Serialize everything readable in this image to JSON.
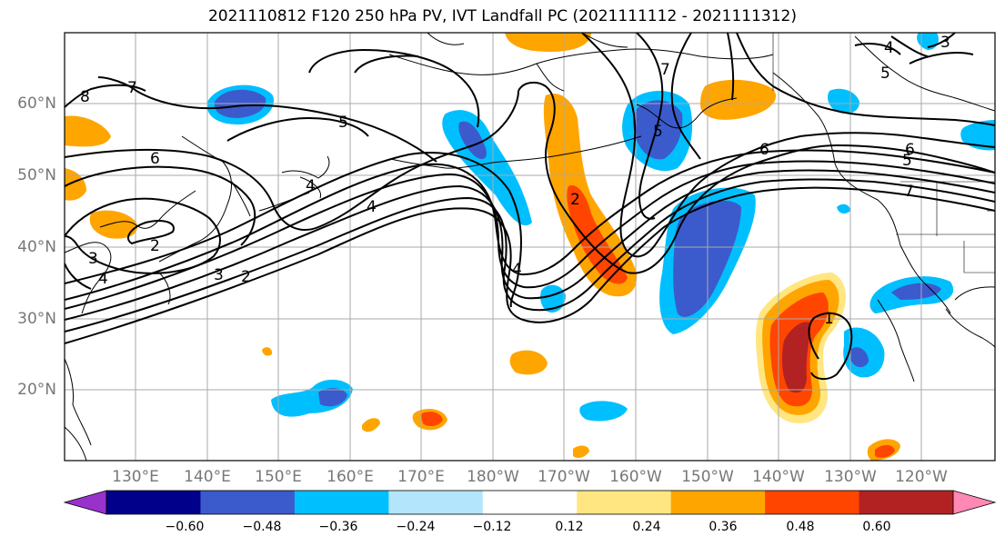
{
  "title": "2021110812 F120 250 hPa PV, IVT Landfall PC (2021111112 - 2021111312)",
  "lat_labels": [
    "60°N",
    "50°N",
    "40°N",
    "30°N",
    "20°N"
  ],
  "lon_labels": [
    "130°E",
    "140°E",
    "150°E",
    "160°E",
    "170°E",
    "180°W",
    "170°W",
    "160°W",
    "150°W",
    "140°W",
    "130°W",
    "120°W"
  ],
  "contour_labels": [
    "8",
    "7",
    "6",
    "5",
    "4",
    "3",
    "2",
    "1"
  ],
  "colorbar": {
    "ticks": [
      "−0.60",
      "−0.48",
      "−0.36",
      "−0.24",
      "−0.12",
      "0.12",
      "0.24",
      "0.36",
      "0.48",
      "0.60"
    ],
    "colors": [
      "#9932cc",
      "#00008b",
      "#3b5bcc",
      "#00bfff",
      "#b3e5fc",
      "#ffffff",
      "#ffe680",
      "#ffa500",
      "#ff4500",
      "#b22222",
      "#ff88b4"
    ]
  }
}
